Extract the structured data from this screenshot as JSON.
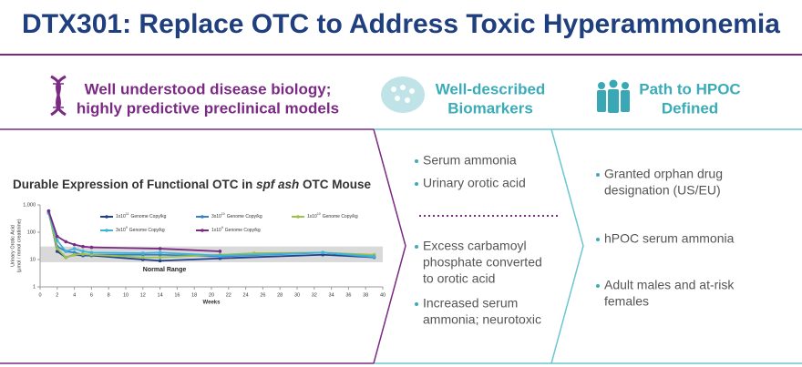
{
  "header": {
    "title": "DTX301: Replace OTC to Address Toxic Hyperammonemia"
  },
  "columns": [
    {
      "heading": [
        "Well understood disease biology;",
        "highly predictive preclinical models"
      ]
    },
    {
      "heading": [
        "Well-described",
        "Biomarkers"
      ],
      "bullets_top": [
        [
          "Serum ammonia"
        ],
        [
          "Urinary orotic acid"
        ]
      ],
      "bullets_bottom": [
        [
          "Excess carbamoyl",
          "phosphate converted",
          "to orotic acid"
        ],
        [
          "Increased serum",
          "ammonia; neurotoxic"
        ]
      ]
    },
    {
      "heading": [
        "Path to HPOC",
        "Defined"
      ],
      "bullets": [
        [
          "Granted orphan drug",
          "designation (US/EU)"
        ],
        [
          "hPOC serum ammonia"
        ],
        [
          "Adult males and at-risk",
          "females"
        ]
      ]
    }
  ],
  "chart_data": {
    "type": "line",
    "title_parts": [
      "Durable Expression of Functional OTC in ",
      "spf ash",
      " OTC Mouse"
    ],
    "y_label": [
      "Urinary Orotic Acid",
      "(µmol / mmol creatinine)"
    ],
    "x_label": "Weeks",
    "log_y": true,
    "ylim": [
      1,
      1000
    ],
    "yticks": [
      1,
      10,
      100,
      {
        "value": 1000,
        "label": "1,000"
      }
    ],
    "xlim": [
      0,
      40
    ],
    "xticks": [
      0,
      2,
      4,
      6,
      8,
      10,
      12,
      14,
      16,
      18,
      20,
      22,
      24,
      26,
      28,
      30,
      32,
      34,
      36,
      38,
      40
    ],
    "normal_range": [
      8,
      30
    ],
    "normal_range_label": "Normal Range",
    "series": [
      {
        "name_base": "1x10",
        "name_exp": "11",
        "name_rest": "Genome Copy/kg",
        "color": "#1f3f8f",
        "x": [
          1,
          2,
          3,
          4,
          5,
          6,
          12,
          14,
          21,
          33,
          39
        ],
        "values": [
          600,
          20,
          12,
          15,
          14,
          14,
          10,
          9,
          11,
          15,
          12
        ]
      },
      {
        "name_base": "3x10",
        "name_exp": "10",
        "name_rest": "Genome Copy/kg",
        "color": "#3b7fc4",
        "x": [
          1,
          2,
          3,
          4,
          5,
          6,
          12,
          14,
          21,
          33,
          39
        ],
        "values": [
          500,
          30,
          20,
          18,
          15,
          15,
          15,
          15,
          13,
          18,
          12
        ]
      },
      {
        "name_base": "1x10",
        "name_exp": "10",
        "name_rest": "Genome Copy/kg",
        "color": "#9cc24a",
        "x": [
          1,
          2,
          3,
          4,
          5,
          6,
          12,
          14,
          21,
          25,
          33,
          39
        ],
        "values": [
          500,
          25,
          12,
          15,
          16,
          15,
          12,
          12,
          15,
          17,
          18,
          15
        ]
      },
      {
        "name_base": "3x10",
        "name_exp": "9",
        "name_rest": "Genome Copy/kg",
        "color": "#3fb3d8",
        "x": [
          1,
          2,
          3,
          4,
          5,
          6,
          12,
          14,
          21,
          33,
          39
        ],
        "values": [
          500,
          50,
          20,
          25,
          20,
          18,
          17,
          18,
          14,
          18,
          13
        ]
      },
      {
        "name_base": "1x10",
        "name_exp": "9",
        "name_rest": "Genome Copy/kg",
        "color": "#7b2a83",
        "x": [
          1,
          2,
          3,
          4,
          5,
          6,
          14,
          21
        ],
        "values": [
          600,
          70,
          45,
          35,
          30,
          28,
          25,
          20
        ]
      }
    ]
  }
}
